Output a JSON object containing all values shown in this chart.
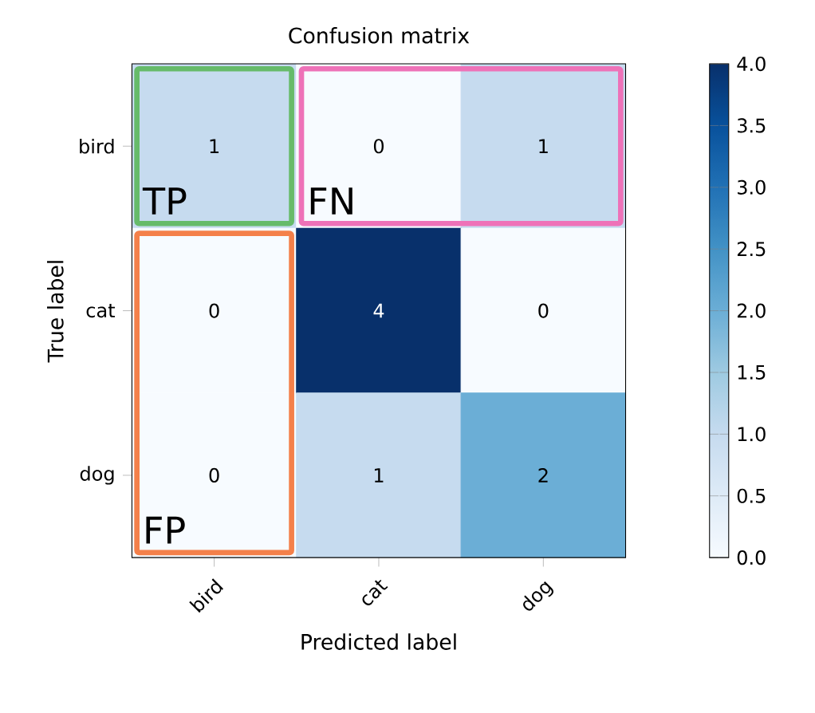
{
  "chart_data": {
    "type": "heatmap",
    "title": "Confusion matrix",
    "xlabel": "Predicted label",
    "ylabel": "True label",
    "categories": [
      "bird",
      "cat",
      "dog"
    ],
    "y_categories": [
      "bird",
      "cat",
      "dog"
    ],
    "cells": [
      [
        1,
        0,
        1
      ],
      [
        0,
        4,
        0
      ],
      [
        0,
        1,
        2
      ]
    ],
    "data_labels": true,
    "clim": [
      0,
      4
    ],
    "cticks": [
      {
        "value": 0,
        "label": "0.0"
      },
      {
        "value": 0.5,
        "label": "0.5"
      },
      {
        "value": 1,
        "label": "1.0"
      },
      {
        "value": 1.5,
        "label": "1.5"
      },
      {
        "value": 2,
        "label": "2.0"
      },
      {
        "value": 2.5,
        "label": "2.5"
      },
      {
        "value": 3,
        "label": "3.0"
      },
      {
        "value": 3.5,
        "label": "3.5"
      },
      {
        "value": 4,
        "label": "4.0"
      }
    ],
    "annotations": [
      "TP",
      "FN",
      "FP"
    ]
  }
}
